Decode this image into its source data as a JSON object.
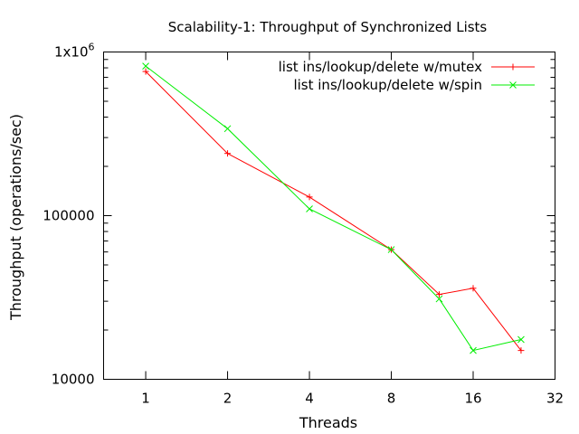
{
  "chart_data": {
    "type": "line",
    "title": "Scalability-1: Throughput of Synchronized Lists",
    "xlabel": "Threads",
    "ylabel": "Throughput (operations/sec)",
    "x_scale": "log2",
    "y_scale": "log10",
    "xlim": [
      0.7,
      32
    ],
    "ylim": [
      10000,
      1000000
    ],
    "xticks": [
      {
        "value": 1,
        "label": "1"
      },
      {
        "value": 2,
        "label": "2"
      },
      {
        "value": 4,
        "label": "4"
      },
      {
        "value": 8,
        "label": "8"
      },
      {
        "value": 16,
        "label": "16"
      },
      {
        "value": 32,
        "label": "32"
      }
    ],
    "yticks": [
      {
        "value": 10000,
        "label": "10000"
      },
      {
        "value": 100000,
        "label": "100000"
      },
      {
        "value": 1000000,
        "label": "1x10",
        "sup": "6"
      }
    ],
    "legend_position": "top-right",
    "series": [
      {
        "name": "list ins/lookup/delete w/mutex",
        "color": "#ff0000",
        "marker": "plus",
        "x": [
          1,
          2,
          4,
          8,
          12,
          16,
          24
        ],
        "y": [
          760000,
          240000,
          130000,
          62000,
          33000,
          36000,
          15000
        ]
      },
      {
        "name": "list ins/lookup/delete w/spin",
        "color": "#00ee00",
        "marker": "cross",
        "x": [
          1,
          2,
          4,
          8,
          12,
          16,
          24
        ],
        "y": [
          820000,
          340000,
          110000,
          62000,
          31000,
          15000,
          17500
        ]
      }
    ]
  }
}
